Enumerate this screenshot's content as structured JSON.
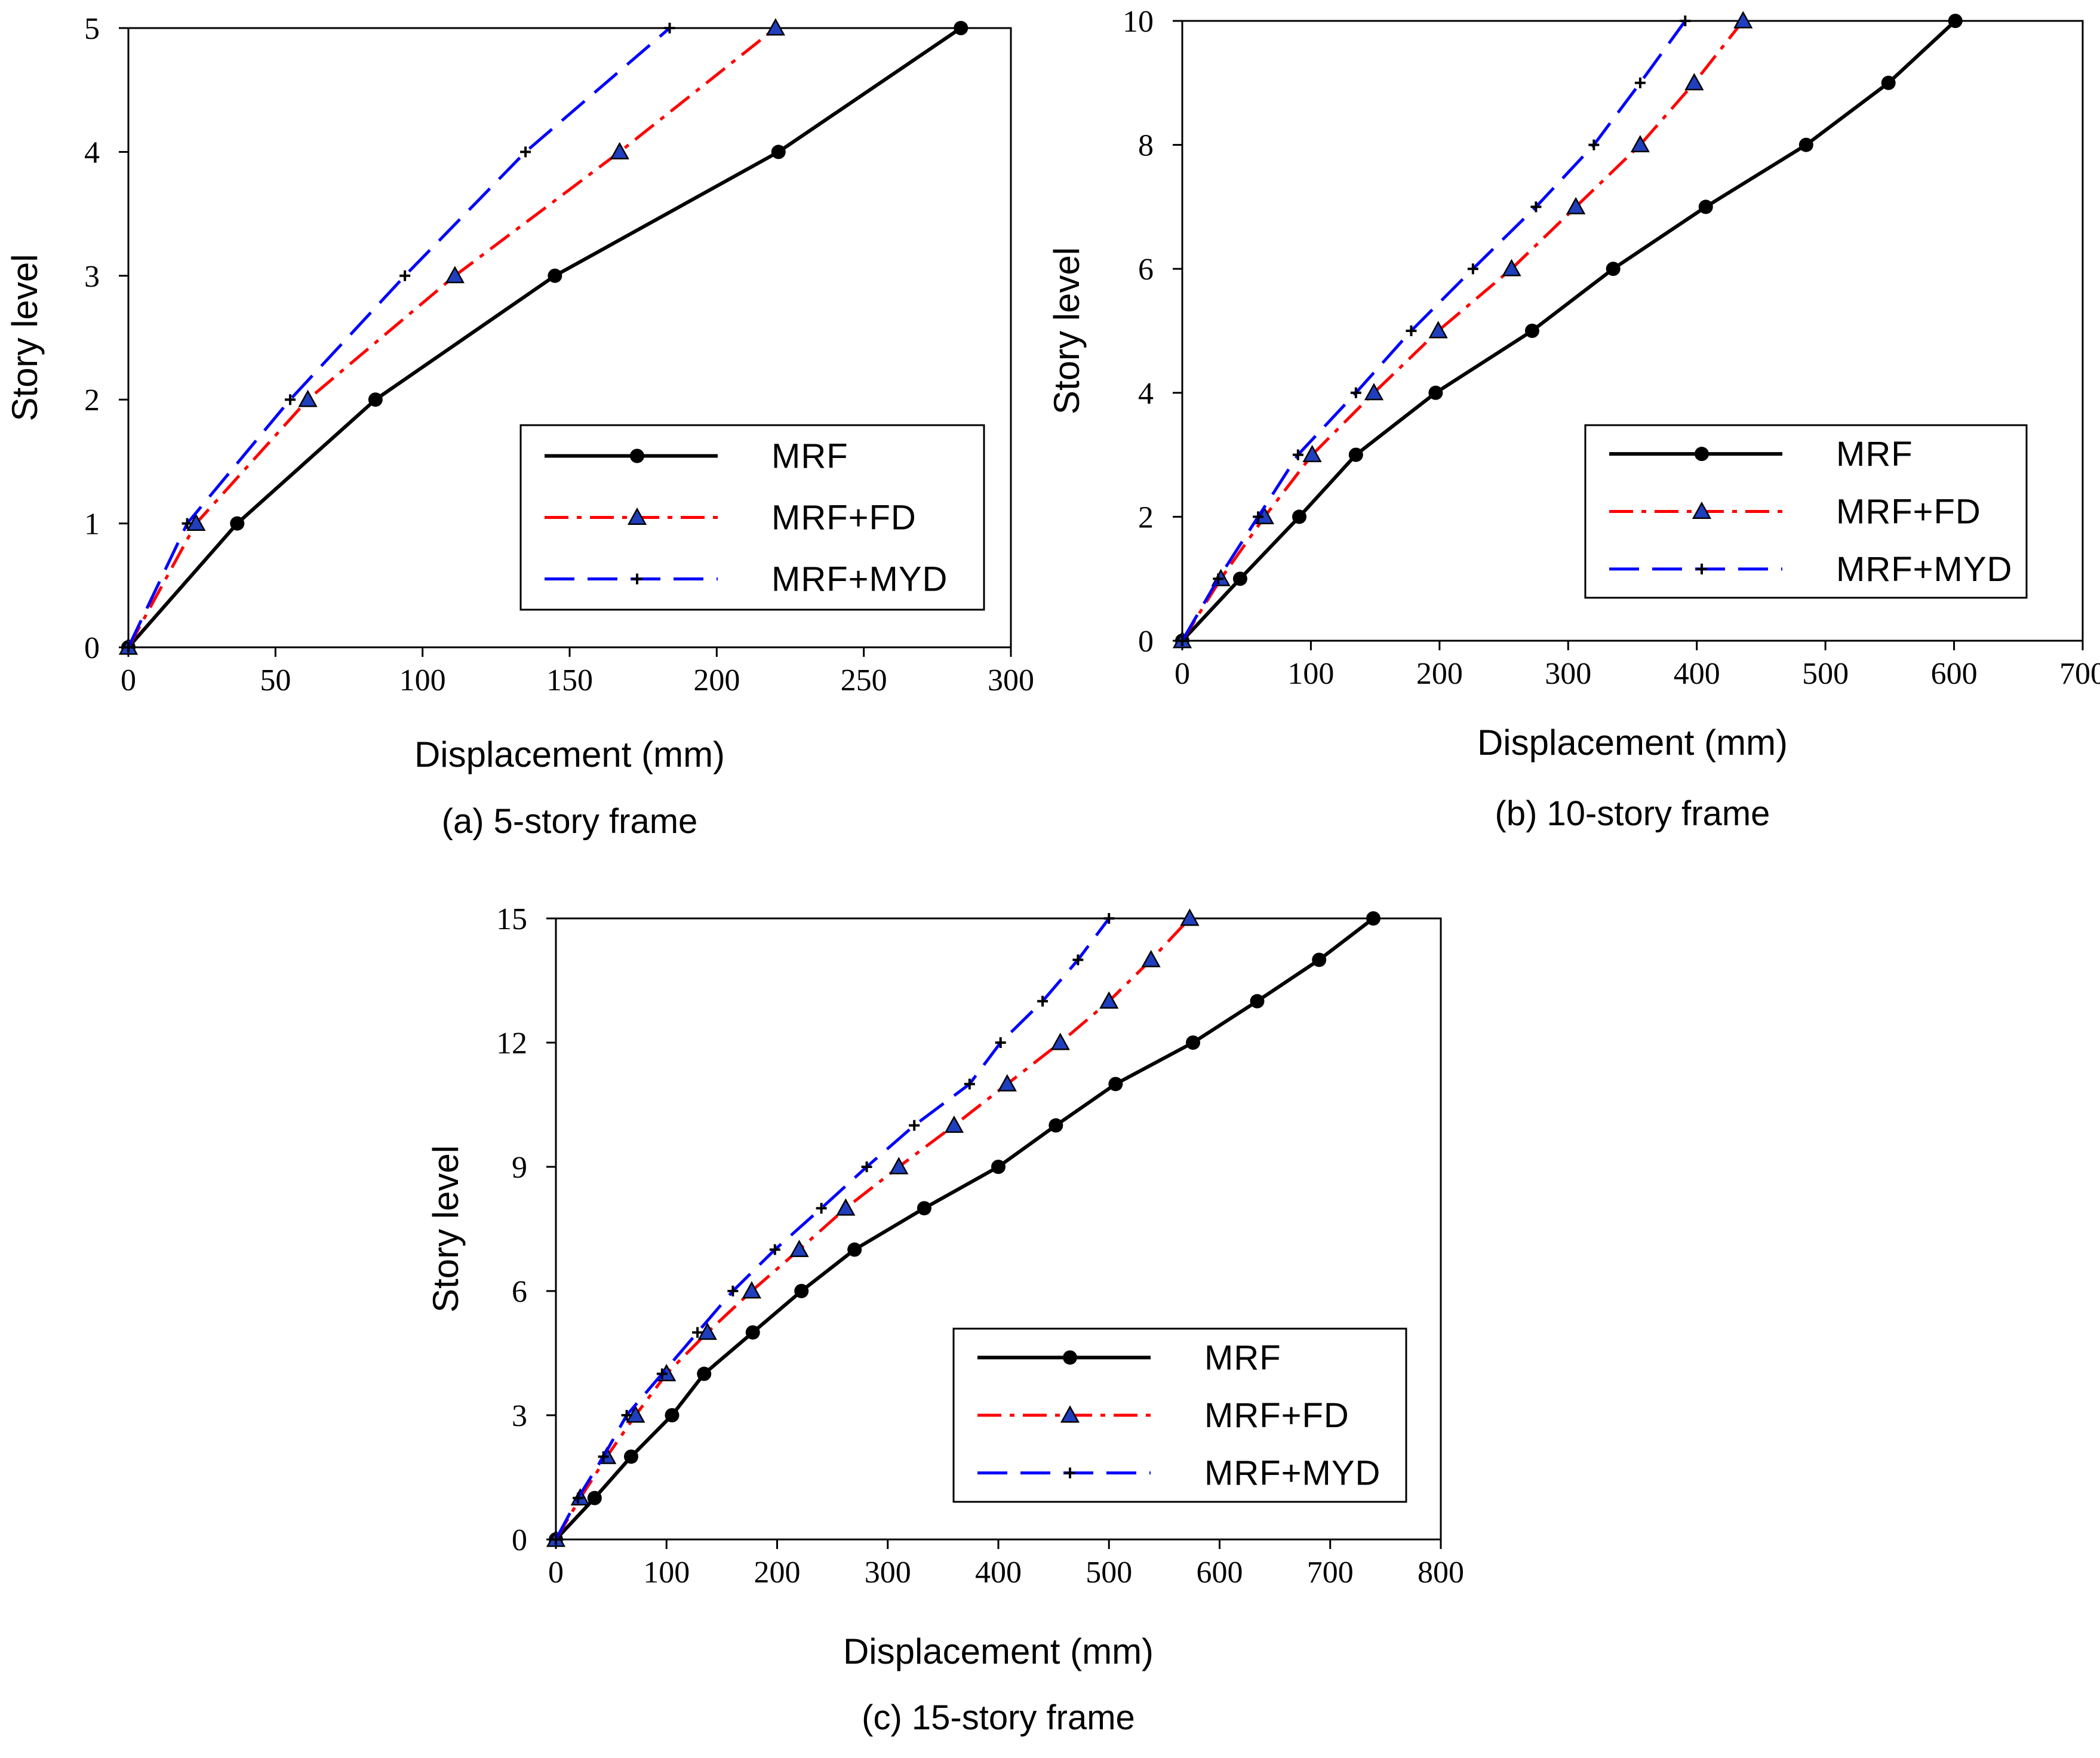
{
  "figure": {
    "panel_captions": [
      "(a) 5-story frame",
      "(b) 10-story frame",
      "(c) 15-story frame"
    ]
  },
  "colors": {
    "MRF": "#000000",
    "MRF+FD": "#ff0000",
    "MRF+MYD": "#0000ff",
    "triangle_fill": "#1f3fbf"
  },
  "chart_data": [
    {
      "type": "line",
      "title": "(a) 5-story frame",
      "xlabel": "Displacement (mm)",
      "ylabel": "Story level",
      "xlim": [
        0,
        300
      ],
      "ylim": [
        0,
        5
      ],
      "xticks": [
        0,
        50,
        100,
        150,
        200,
        250,
        300
      ],
      "yticks": [
        0,
        1,
        2,
        3,
        4,
        5
      ],
      "legend": "inside-lower-right",
      "grid": false,
      "series": [
        {
          "name": "MRF",
          "style": "solid",
          "marker": "circle",
          "x": [
            0,
            37,
            84,
            145,
            221,
            283
          ],
          "y": [
            0,
            1,
            2,
            3,
            4,
            5
          ]
        },
        {
          "name": "MRF+FD",
          "style": "dashdot",
          "marker": "triangle",
          "x": [
            0,
            23,
            61,
            111,
            167,
            220
          ],
          "y": [
            0,
            1,
            2,
            3,
            4,
            5
          ]
        },
        {
          "name": "MRF+MYD",
          "style": "dashed",
          "marker": "plus",
          "x": [
            0,
            20,
            55,
            94,
            135,
            184
          ],
          "y": [
            0,
            1,
            2,
            3,
            4,
            5
          ]
        }
      ]
    },
    {
      "type": "line",
      "title": "(b) 10-story frame",
      "xlabel": "Displacement (mm)",
      "ylabel": "Story level",
      "xlim": [
        0,
        700
      ],
      "ylim": [
        0,
        10
      ],
      "xticks": [
        0,
        100,
        200,
        300,
        400,
        500,
        600,
        700
      ],
      "yticks": [
        0,
        2,
        4,
        6,
        8,
        10
      ],
      "legend": "inside-lower-right",
      "grid": false,
      "series": [
        {
          "name": "MRF",
          "style": "solid",
          "marker": "circle",
          "x": [
            0,
            45,
            91,
            135,
            197,
            272,
            335,
            407,
            485,
            549,
            601
          ],
          "y": [
            0,
            1,
            2,
            3,
            4,
            5,
            6,
            7,
            8,
            9,
            10
          ]
        },
        {
          "name": "MRF+FD",
          "style": "dashdot",
          "marker": "triangle",
          "x": [
            0,
            30,
            64,
            101,
            149,
            199,
            256,
            306,
            356,
            398,
            436
          ],
          "y": [
            0,
            1,
            2,
            3,
            4,
            5,
            6,
            7,
            8,
            9,
            10
          ]
        },
        {
          "name": "MRF+MYD",
          "style": "dashed",
          "marker": "plus",
          "x": [
            0,
            28,
            59,
            90,
            135,
            178,
            226,
            275,
            320,
            356,
            391
          ],
          "y": [
            0,
            1,
            2,
            3,
            4,
            5,
            6,
            7,
            8,
            9,
            10
          ]
        }
      ]
    },
    {
      "type": "line",
      "title": "(c) 15-story frame",
      "xlabel": "Displacement (mm)",
      "ylabel": "Story level",
      "xlim": [
        0,
        800
      ],
      "ylim": [
        0,
        15
      ],
      "xticks": [
        0,
        100,
        200,
        300,
        400,
        500,
        600,
        700,
        800
      ],
      "yticks": [
        0,
        3,
        6,
        9,
        12,
        15
      ],
      "legend": "inside-lower-right",
      "grid": false,
      "series": [
        {
          "name": "MRF",
          "style": "solid",
          "marker": "circle",
          "x": [
            0,
            35,
            68,
            105,
            134,
            178,
            222,
            270,
            333,
            400,
            452,
            506,
            576,
            634,
            690,
            739
          ],
          "y": [
            0,
            1,
            2,
            3,
            4,
            5,
            6,
            7,
            8,
            9,
            10,
            11,
            12,
            13,
            14,
            15
          ]
        },
        {
          "name": "MRF+FD",
          "style": "dashdot",
          "marker": "triangle",
          "x": [
            0,
            22,
            46,
            72,
            100,
            137,
            177,
            220,
            262,
            310,
            360,
            408,
            456,
            500,
            538,
            573
          ],
          "y": [
            0,
            1,
            2,
            3,
            4,
            5,
            6,
            7,
            8,
            9,
            10,
            11,
            12,
            13,
            14,
            15
          ]
        },
        {
          "name": "MRF+MYD",
          "style": "dashed",
          "marker": "plus",
          "x": [
            0,
            20,
            43,
            64,
            96,
            128,
            160,
            198,
            240,
            281,
            324,
            374,
            402,
            440,
            472,
            500
          ],
          "y": [
            0,
            1,
            2,
            3,
            4,
            5,
            6,
            7,
            8,
            9,
            10,
            11,
            12,
            13,
            14,
            15
          ]
        }
      ]
    }
  ]
}
